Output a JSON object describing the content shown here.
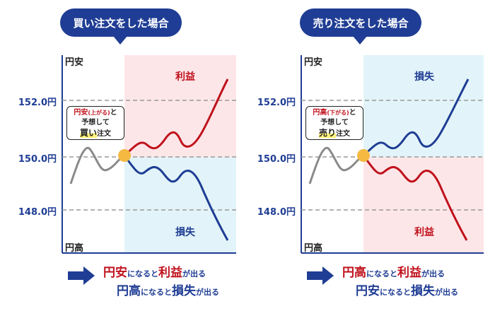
{
  "panels": [
    {
      "header": "買い注文をした場合",
      "axis_top": "円安",
      "axis_bottom": "円高",
      "price_levels": [
        "152.0円",
        "150.0円",
        "148.0円"
      ],
      "zone_top_label": "利益",
      "zone_bottom_label": "損失",
      "callout": {
        "pair": "円安",
        "dir": "(上がる)",
        "tail": "と",
        "line2": "予想して",
        "order": "買い",
        "order_suffix": "注文"
      },
      "footer": {
        "l1_a": "円安",
        "l1_b": "になると",
        "l1_c": "利益",
        "l1_d": "が出る",
        "l2_a": "円高",
        "l2_b": "になると",
        "l2_c": "損失",
        "l2_d": "が出る"
      }
    },
    {
      "header": "売り注文をした場合",
      "axis_top": "円安",
      "axis_bottom": "円高",
      "price_levels": [
        "152.0円",
        "150.0円",
        "148.0円"
      ],
      "zone_top_label": "損失",
      "zone_bottom_label": "利益",
      "callout": {
        "pair": "円高",
        "dir": "(下がる)",
        "tail": "と",
        "line2": "予想して",
        "order": "売り",
        "order_suffix": "注文"
      },
      "footer": {
        "l1_a": "円高",
        "l1_b": "になると",
        "l1_c": "利益",
        "l1_d": "が出る",
        "l2_a": "円安",
        "l2_b": "になると",
        "l2_c": "損失",
        "l2_d": "が出る"
      }
    }
  ],
  "colors": {
    "navy": "#1f3d94",
    "red": "#c0121c",
    "pink_zone": "#fde6e8",
    "blue_zone": "#e2f4f9",
    "gray_line": "#8a8a8a",
    "entry_dot": "#f5b942"
  }
}
